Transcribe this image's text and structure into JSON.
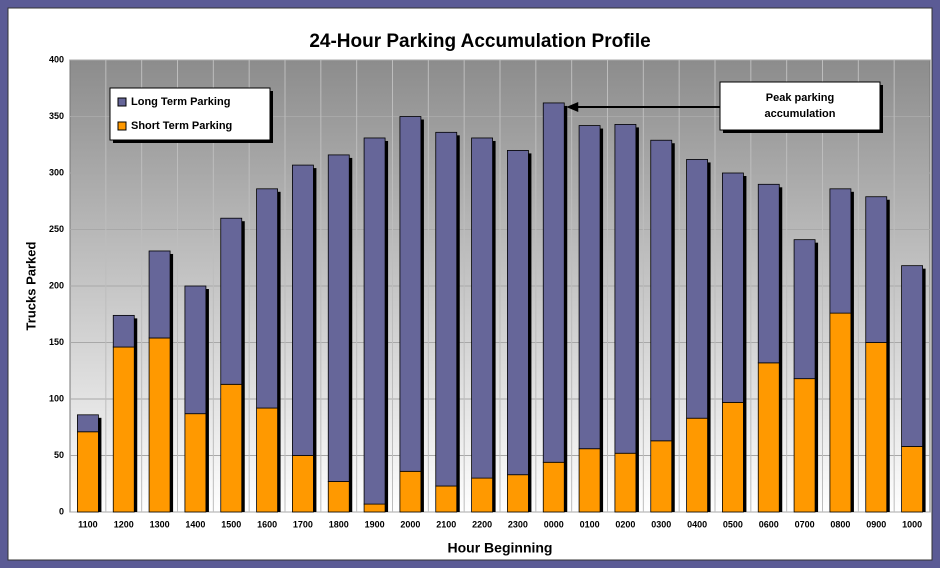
{
  "chart_data": {
    "type": "bar",
    "stacked": true,
    "title": "24-Hour Parking Accumulation Profile",
    "x_label": "Hour Beginning",
    "y_label": "Trucks Parked",
    "categories": [
      "1100",
      "1200",
      "1300",
      "1400",
      "1500",
      "1600",
      "1700",
      "1800",
      "1900",
      "2000",
      "2100",
      "2200",
      "2300",
      "0000",
      "0100",
      "0200",
      "0300",
      "0400",
      "0500",
      "0600",
      "0700",
      "0800",
      "0900",
      "1000"
    ],
    "series": [
      {
        "name": "Long Term Parking",
        "color": "#666699",
        "values": [
          15,
          28,
          77,
          113,
          147,
          194,
          257,
          289,
          324,
          314,
          313,
          301,
          287,
          318,
          286,
          291,
          266,
          229,
          203,
          158,
          123,
          110,
          129,
          160
        ]
      },
      {
        "name": "Short Term Parking",
        "color": "#ff9900",
        "values": [
          71,
          146,
          154,
          87,
          113,
          92,
          50,
          27,
          7,
          36,
          23,
          30,
          33,
          44,
          56,
          52,
          63,
          83,
          97,
          132,
          118,
          176,
          150,
          58
        ]
      }
    ],
    "stack_order": [
      "Short Term Parking",
      "Long Term Parking"
    ],
    "ylim": [
      0,
      400
    ],
    "yticks": [
      0,
      50,
      100,
      150,
      200,
      250,
      300,
      350,
      400
    ],
    "grid": true,
    "legend": "upper left",
    "annotation": {
      "text": [
        "Peak parking",
        "accumulation"
      ],
      "category": "0000"
    }
  }
}
